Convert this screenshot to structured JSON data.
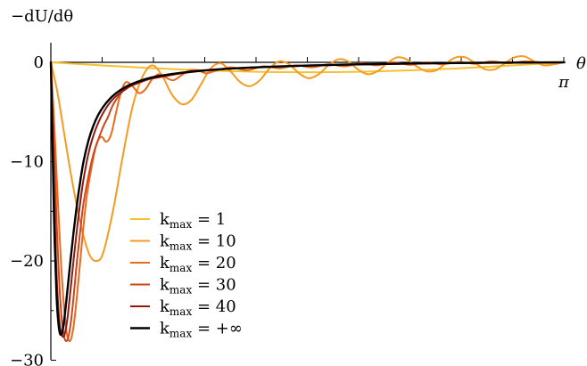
{
  "chart_data": {
    "type": "line",
    "ylabel": "−dU/dθ",
    "xlabel": "θ",
    "x_tick_label": "π",
    "ylim": [
      -30,
      2
    ],
    "xlim": [
      0,
      3.14159
    ],
    "y_ticks": [
      {
        "value": 0,
        "label": "0"
      },
      {
        "value": -10,
        "label": "−10"
      },
      {
        "value": -20,
        "label": "−20"
      },
      {
        "value": -30,
        "label": "−30"
      }
    ],
    "legend_position": "center-left",
    "series": [
      {
        "name": "kmax = 1",
        "label_main": "k",
        "label_sub": "max",
        "label_value": " = 1",
        "color": "#f5c12e",
        "width": 2,
        "x": [
          0,
          0.157,
          0.314,
          0.471,
          0.628,
          0.785,
          0.942,
          1.1,
          1.257,
          1.414,
          1.571,
          1.728,
          1.885,
          2.042,
          2.199,
          2.356,
          2.513,
          2.67,
          2.827,
          2.985,
          3.142
        ],
        "y": [
          0,
          -0.16,
          -0.31,
          -0.45,
          -0.59,
          -0.71,
          -0.81,
          -0.89,
          -0.95,
          -0.99,
          -1.0,
          -0.99,
          -0.95,
          -0.89,
          -0.81,
          -0.71,
          -0.59,
          -0.45,
          -0.31,
          -0.16,
          0
        ]
      },
      {
        "name": "kmax = 10",
        "label_main": "k",
        "label_sub": "max",
        "label_value": " = 10",
        "color": "#f59b21",
        "width": 2,
        "x": [
          0,
          0.04,
          0.08,
          0.12,
          0.16,
          0.2,
          0.24,
          0.28,
          0.32,
          0.38,
          0.44,
          0.5,
          0.56,
          0.62,
          0.68,
          0.74,
          0.8,
          0.86,
          0.92,
          0.98,
          1.04,
          1.1,
          1.16,
          1.22,
          1.28,
          1.34,
          1.4,
          1.46,
          1.52,
          1.58,
          1.64,
          1.7,
          1.76,
          1.82,
          1.88,
          1.94,
          2.0,
          2.06,
          2.12,
          2.18,
          2.24,
          2.3,
          2.36,
          2.42,
          2.48,
          2.54,
          2.6,
          2.66,
          2.72,
          2.78,
          2.84,
          2.9,
          2.96,
          3.02,
          3.08,
          3.142
        ],
        "y": [
          0,
          -3.0,
          -7.0,
          -11.0,
          -14.5,
          -17.5,
          -19.5,
          -20.0,
          -19.2,
          -15.0,
          -9.5,
          -4.5,
          -1.5,
          -0.3,
          -1.3,
          -3.2,
          -4.2,
          -3.8,
          -2.2,
          -0.6,
          -0.1,
          -0.9,
          -2.0,
          -2.4,
          -1.8,
          -0.6,
          0.1,
          -0.2,
          -1.1,
          -1.6,
          -1.2,
          -0.3,
          0.3,
          0.1,
          -0.7,
          -1.2,
          -0.9,
          -0.1,
          0.5,
          0.3,
          -0.4,
          -0.9,
          -0.8,
          -0.1,
          0.5,
          0.5,
          -0.1,
          -0.7,
          -0.7,
          -0.1,
          0.5,
          0.6,
          0.1,
          -0.3,
          -0.2,
          0
        ]
      },
      {
        "name": "kmax = 20",
        "label_main": "k",
        "label_sub": "max",
        "label_value": " = 20",
        "color": "#ea6a1f",
        "width": 2,
        "x": [
          0,
          0.02,
          0.04,
          0.06,
          0.08,
          0.1,
          0.12,
          0.14,
          0.16,
          0.18,
          0.2,
          0.22,
          0.25,
          0.28,
          0.31,
          0.34,
          0.37,
          0.4,
          0.43,
          0.46,
          0.5,
          0.54,
          0.58,
          0.62,
          0.66,
          0.7,
          0.75,
          0.8,
          0.85,
          0.9,
          0.95,
          1.0,
          1.1,
          1.2,
          1.3,
          1.4,
          1.5,
          1.6,
          1.7,
          1.8,
          1.9,
          2.0,
          2.1,
          2.2,
          2.3,
          2.4,
          2.5,
          2.6,
          2.7,
          2.8,
          2.9,
          3.0,
          3.142
        ],
        "y": [
          0,
          -6,
          -13,
          -19.5,
          -24.5,
          -27.5,
          -28.0,
          -26.5,
          -23.5,
          -20.0,
          -16.5,
          -13.5,
          -10.5,
          -8.2,
          -7.5,
          -8.0,
          -7.2,
          -5.0,
          -3.0,
          -2.0,
          -2.4,
          -3.1,
          -2.7,
          -1.7,
          -1.2,
          -1.5,
          -1.8,
          -1.3,
          -0.8,
          -0.8,
          -1.1,
          -0.9,
          -0.5,
          -0.8,
          -0.4,
          -0.6,
          -0.3,
          -0.5,
          -0.2,
          -0.4,
          -0.1,
          -0.3,
          0,
          -0.25,
          0,
          -0.2,
          0.05,
          -0.15,
          0.1,
          -0.1,
          0.1,
          0,
          0
        ]
      },
      {
        "name": "kmax = 30",
        "label_main": "k",
        "label_sub": "max",
        "label_value": " = 30",
        "color": "#d24418",
        "width": 2,
        "x": [
          0,
          0.02,
          0.04,
          0.06,
          0.08,
          0.1,
          0.12,
          0.14,
          0.16,
          0.18,
          0.2,
          0.23,
          0.26,
          0.29,
          0.32,
          0.35,
          0.38,
          0.42,
          0.46,
          0.5,
          0.55,
          0.6,
          0.7,
          0.8,
          0.9,
          1.0,
          1.2,
          1.4,
          1.6,
          1.8,
          2.0,
          2.2,
          2.4,
          2.6,
          2.8,
          3.0,
          3.142
        ],
        "y": [
          0,
          -9,
          -18,
          -24.5,
          -27.5,
          -28.0,
          -26.5,
          -23.5,
          -20.0,
          -17.0,
          -14.2,
          -11.5,
          -9.3,
          -7.8,
          -6.5,
          -5.5,
          -4.3,
          -3.3,
          -2.6,
          -2.3,
          -2.0,
          -1.7,
          -1.4,
          -1.1,
          -0.9,
          -0.75,
          -0.55,
          -0.42,
          -0.32,
          -0.24,
          -0.18,
          -0.13,
          -0.09,
          -0.06,
          -0.03,
          -0.01,
          0
        ]
      },
      {
        "name": "kmax = 40",
        "label_main": "k",
        "label_sub": "max",
        "label_value": " = 40",
        "color": "#8f1a0c",
        "width": 2,
        "x": [
          0,
          0.015,
          0.03,
          0.045,
          0.06,
          0.08,
          0.1,
          0.12,
          0.14,
          0.16,
          0.18,
          0.2,
          0.23,
          0.26,
          0.29,
          0.32,
          0.36,
          0.4,
          0.45,
          0.5,
          0.6,
          0.7,
          0.8,
          0.9,
          1.0,
          1.2,
          1.4,
          1.6,
          1.8,
          2.0,
          2.2,
          2.4,
          2.6,
          2.8,
          3.0,
          3.142
        ],
        "y": [
          0,
          -10,
          -19,
          -24.5,
          -27.0,
          -27.6,
          -26.0,
          -23.0,
          -19.8,
          -16.8,
          -14.1,
          -11.8,
          -9.2,
          -7.4,
          -6.1,
          -5.1,
          -4.1,
          -3.4,
          -2.8,
          -2.3,
          -1.7,
          -1.35,
          -1.1,
          -0.9,
          -0.75,
          -0.55,
          -0.42,
          -0.32,
          -0.24,
          -0.18,
          -0.13,
          -0.09,
          -0.06,
          -0.03,
          -0.01,
          0
        ]
      },
      {
        "name": "kmax = +∞",
        "label_main": "k",
        "label_sub": "max",
        "label_value": " = +∞",
        "color": "#000000",
        "width": 2.4,
        "x": [
          0,
          0.01,
          0.02,
          0.035,
          0.05,
          0.065,
          0.08,
          0.1,
          0.12,
          0.14,
          0.16,
          0.18,
          0.2,
          0.23,
          0.26,
          0.29,
          0.32,
          0.36,
          0.4,
          0.45,
          0.5,
          0.6,
          0.7,
          0.8,
          0.9,
          1.0,
          1.2,
          1.4,
          1.6,
          1.8,
          2.0,
          2.2,
          2.4,
          2.6,
          2.8,
          3.0,
          3.142
        ],
        "y": [
          0,
          -8,
          -16,
          -23.5,
          -26.8,
          -27.4,
          -26.2,
          -23.2,
          -20.0,
          -17.0,
          -14.3,
          -12.0,
          -10.0,
          -7.9,
          -6.4,
          -5.3,
          -4.5,
          -3.7,
          -3.1,
          -2.55,
          -2.15,
          -1.6,
          -1.28,
          -1.05,
          -0.87,
          -0.73,
          -0.54,
          -0.41,
          -0.31,
          -0.23,
          -0.17,
          -0.12,
          -0.08,
          -0.05,
          -0.03,
          -0.01,
          0
        ]
      }
    ]
  }
}
